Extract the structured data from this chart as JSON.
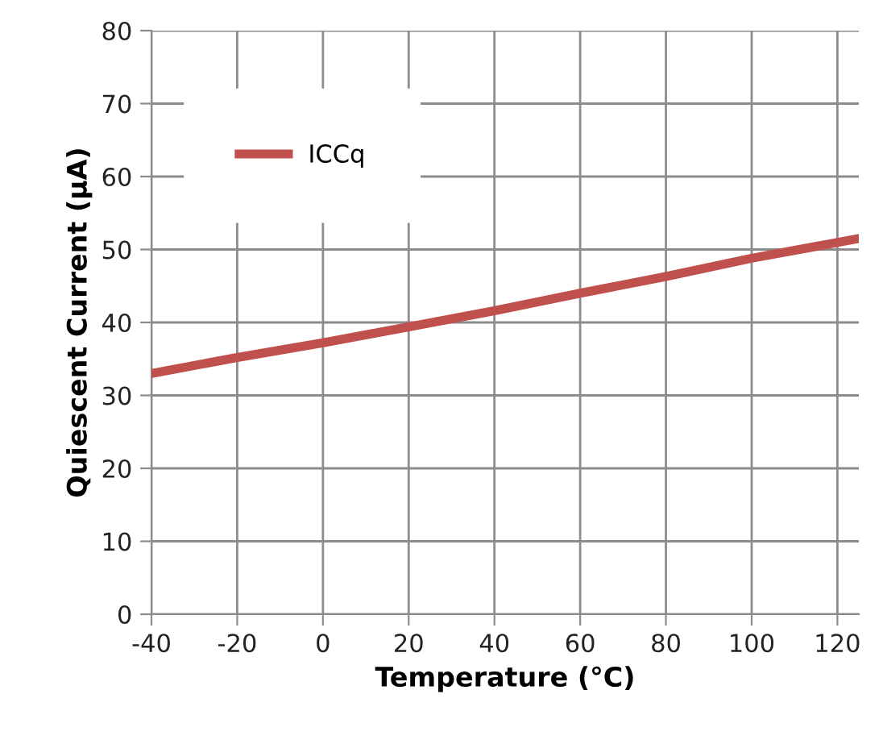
{
  "chart_data": {
    "type": "line",
    "xlabel": "Temperature (°C)",
    "ylabel": "Quiescent Current (µA)",
    "x": [
      -40,
      -20,
      0,
      20,
      40,
      60,
      80,
      100,
      125
    ],
    "series": [
      {
        "name": "ICCq",
        "color": "#c0504d",
        "values": [
          33,
          35.2,
          37.2,
          39.4,
          41.6,
          44,
          46.3,
          48.8,
          51.5
        ]
      }
    ],
    "xlim": [
      -40,
      125
    ],
    "xticks": [
      -40,
      -20,
      0,
      20,
      40,
      60,
      80,
      100,
      120
    ],
    "ylim": [
      0,
      80
    ],
    "yticks": [
      0,
      10,
      20,
      30,
      40,
      50,
      60,
      70,
      80
    ],
    "grid": true,
    "legend": "top left"
  }
}
